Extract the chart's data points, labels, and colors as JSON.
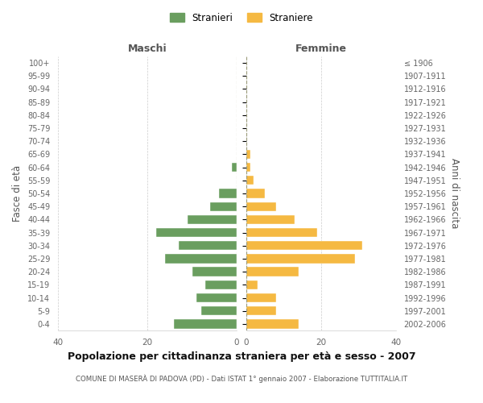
{
  "age_groups": [
    "100+",
    "95-99",
    "90-94",
    "85-89",
    "80-84",
    "75-79",
    "70-74",
    "65-69",
    "60-64",
    "55-59",
    "50-54",
    "45-49",
    "40-44",
    "35-39",
    "30-34",
    "25-29",
    "20-24",
    "15-19",
    "10-14",
    "5-9",
    "0-4"
  ],
  "birth_years": [
    "≤ 1906",
    "1907-1911",
    "1912-1916",
    "1917-1921",
    "1922-1926",
    "1927-1931",
    "1932-1936",
    "1937-1941",
    "1942-1946",
    "1947-1951",
    "1952-1956",
    "1957-1961",
    "1962-1966",
    "1967-1971",
    "1972-1976",
    "1977-1981",
    "1982-1986",
    "1987-1991",
    "1992-1996",
    "1997-2001",
    "2002-2006"
  ],
  "maschi": [
    0,
    0,
    0,
    0,
    0,
    0,
    0,
    0,
    1,
    0,
    4,
    6,
    11,
    18,
    13,
    16,
    10,
    7,
    9,
    8,
    14
  ],
  "femmine": [
    0,
    0,
    0,
    0,
    0,
    0,
    0,
    1,
    1,
    2,
    5,
    8,
    13,
    19,
    31,
    29,
    14,
    3,
    8,
    8,
    14
  ],
  "color_maschi": "#6a9e5f",
  "color_femmine": "#f5b942",
  "title": "Popolazione per cittadinanza straniera per età e sesso - 2007",
  "subtitle": "COMUNE DI MASERÀ DI PADOVA (PD) - Dati ISTAT 1° gennaio 2007 - Elaborazione TUTTITALIA.IT",
  "ylabel_left": "Fasce di età",
  "ylabel_right": "Anni di nascita",
  "xlabel_maschi": "Maschi",
  "xlabel_femmine": "Femmine",
  "xlim": 40,
  "legend_stranieri": "Stranieri",
  "legend_straniere": "Straniere",
  "background_color": "#ffffff",
  "grid_color": "#cccccc"
}
